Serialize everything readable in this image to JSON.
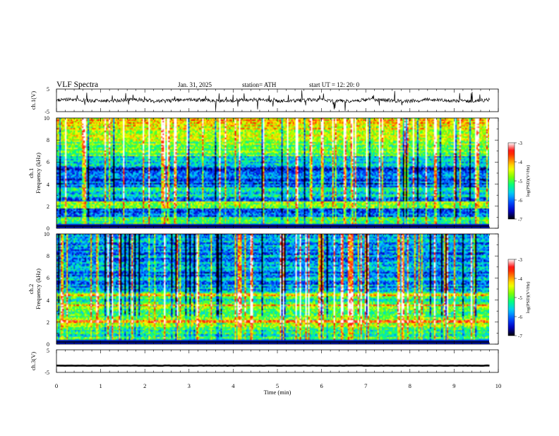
{
  "header": {
    "title": "VLF  Spectra",
    "date": "Jan. 31, 2025",
    "station": "station= ATH",
    "start": "start  UT  =   12: 20: 0"
  },
  "chart_data": [
    {
      "type": "line",
      "name": "ch1-waveform",
      "ylabel": "ch.1(V)",
      "ylim": [
        -5,
        5
      ],
      "yticks": [
        "5",
        "-5"
      ],
      "xlim": [
        0,
        10
      ]
    },
    {
      "type": "heatmap",
      "name": "ch1-spectrogram",
      "ylabel_channel": "ch.1",
      "ylabel": "Frequency  (kHz)",
      "ylim": [
        0,
        10
      ],
      "yticks": [
        "10",
        "8",
        "6",
        "4",
        "2",
        "0"
      ],
      "xlim": [
        0,
        10
      ],
      "data_extent_min": 9.8,
      "colorbar": {
        "label": "log(PSD)(V²/Hz)",
        "ticks": [
          "-3",
          "-4",
          "-5",
          "-6",
          "-7"
        ],
        "range": [
          -7,
          -3
        ]
      }
    },
    {
      "type": "heatmap",
      "name": "ch2-spectrogram",
      "ylabel_channel": "ch.2",
      "ylabel": "Frequency  (kHz)",
      "ylim": [
        0,
        10
      ],
      "yticks": [
        "10",
        "8",
        "6",
        "4",
        "2",
        "0"
      ],
      "xlim": [
        0,
        10
      ],
      "data_extent_min": 9.8,
      "colorbar": {
        "label": "log(PSD)(V²/Hz)",
        "ticks": [
          "-3",
          "-4",
          "-5",
          "-6",
          "-7"
        ],
        "range": [
          -7,
          -3
        ]
      }
    },
    {
      "type": "line",
      "name": "ch3-waveform",
      "ylabel": "ch.3(V)",
      "ylim": [
        -5,
        5
      ],
      "yticks": [
        "5",
        "-5"
      ],
      "xlim": [
        0,
        10
      ],
      "approx_level_v": -2
    }
  ],
  "xaxis": {
    "label": "Time  (min)",
    "ticks": [
      "0",
      "1",
      "2",
      "3",
      "4",
      "5",
      "6",
      "7",
      "8",
      "9",
      "10"
    ]
  },
  "colors": {
    "colormap": [
      "#000000",
      "#0000c8",
      "#0050ff",
      "#00c8ff",
      "#00ff80",
      "#80ff00",
      "#ffff00",
      "#ff8000",
      "#ff0000",
      "#ffffff"
    ]
  }
}
